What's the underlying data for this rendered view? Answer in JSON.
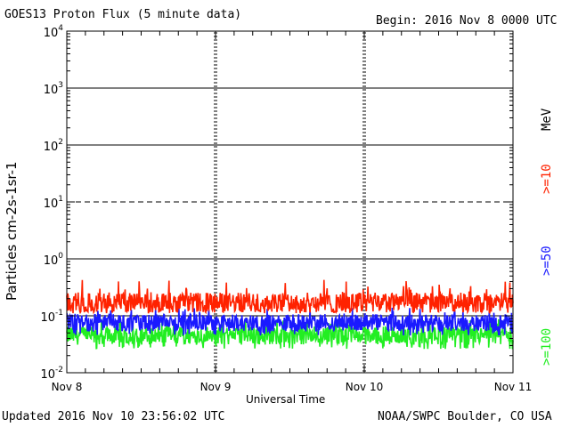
{
  "header": {
    "title": "GOES13 Proton Flux (5 minute data)",
    "begin": "Begin: 2016 Nov 8 0000 UTC"
  },
  "footer": {
    "updated": "Updated 2016 Nov 10 23:56:02 UTC",
    "source": "NOAA/SWPC Boulder, CO USA"
  },
  "legend": {
    "unit": "MeV",
    "items": [
      {
        "label": ">=10",
        "color": "#ff2200"
      },
      {
        "label": ">=50",
        "color": "#1a1aff"
      },
      {
        "label": ">=100",
        "color": "#22ee22"
      }
    ]
  },
  "chart_data": {
    "type": "line",
    "title": "GOES13 Proton Flux (5 minute data)",
    "xlabel": "Universal Time",
    "ylabel": "Particles cm-2s-1sr-1",
    "y_scale": "log",
    "ylim": [
      0.01,
      10000
    ],
    "y_ticks": [
      "10-2",
      "10-1",
      "100",
      "101",
      "102",
      "103",
      "104"
    ],
    "x_ticks": [
      "Nov 8",
      "Nov 9",
      "Nov 10",
      "Nov 11"
    ],
    "xlim": [
      "2016-11-08T00:00Z",
      "2016-11-11T00:00Z"
    ],
    "threshold_lines": [
      10
    ],
    "series": [
      {
        "name": ">=10",
        "color": "#ff2200",
        "typical": 0.17,
        "range": [
          0.11,
          0.48
        ]
      },
      {
        "name": ">=50",
        "color": "#1a1aff",
        "typical": 0.075,
        "range": [
          0.045,
          0.16
        ]
      },
      {
        "name": ">=100",
        "color": "#22ee22",
        "typical": 0.045,
        "range": [
          0.026,
          0.1
        ]
      }
    ]
  }
}
